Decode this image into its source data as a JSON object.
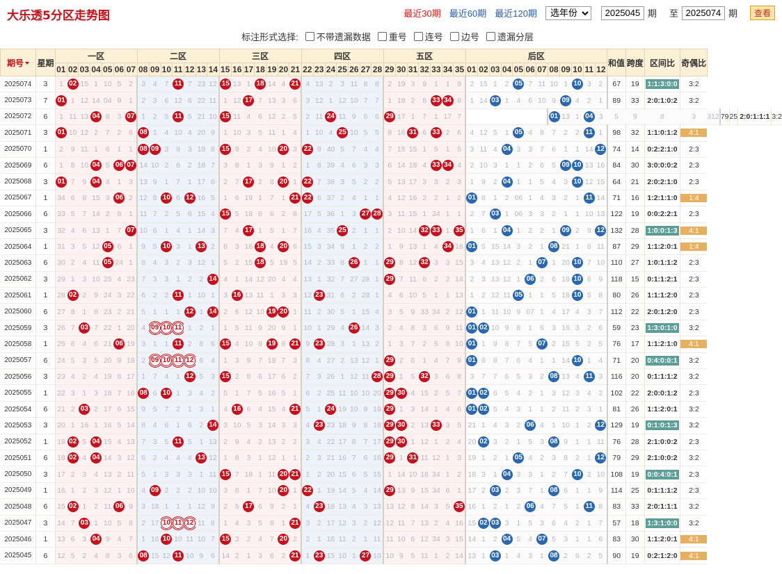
{
  "header": {
    "title": "大乐透5分区走势图",
    "links": [
      "最近30期",
      "最近60期",
      "最近120期"
    ],
    "active_link": 0,
    "year_select": "选年份",
    "period_from": "2025045",
    "period_label": "期",
    "to_label": "至",
    "period_to": "2025074",
    "view_button": "查看"
  },
  "options": {
    "label": "标注形式选择:",
    "items": [
      "不带遗漏数据",
      "重号",
      "连号",
      "边号",
      "遗漏分层"
    ]
  },
  "table": {
    "col_period": "期号",
    "col_week": "星期",
    "zones": [
      "一区",
      "二区",
      "三区",
      "四区",
      "五区",
      "后区"
    ],
    "col_sum": "和值",
    "col_span": "跨度",
    "col_ratio": "区间比",
    "col_oe": "奇偶比",
    "front_numbers": [
      "01",
      "02",
      "03",
      "04",
      "05",
      "06",
      "07",
      "08",
      "09",
      "10",
      "11",
      "12",
      "13",
      "14",
      "15",
      "16",
      "17",
      "18",
      "19",
      "20",
      "21",
      "22",
      "23",
      "24",
      "25",
      "26",
      "27",
      "28",
      "29",
      "30",
      "31",
      "32",
      "33",
      "34",
      "35"
    ],
    "back_numbers": [
      "01",
      "02",
      "03",
      "04",
      "05",
      "06",
      "07",
      "08",
      "09",
      "10",
      "11",
      "12"
    ]
  },
  "rows": [
    {
      "p": "2025074",
      "w": "3",
      "f": "1 02 15 1 10 5 2|3 4 7 11 7 23 12|15 13 1 18 14 4 21|4 13 2 3 11 8 8|2 19 3 9 1 1 9",
      "b": "2 15 1 2 05 7 11 10 1 10 3 2",
      "s": "67",
      "k": "19",
      "ratio": "1:1:3:0:0",
      "oe": "3:2"
    },
    {
      "p": "2025073",
      "w": "7",
      "f": "01 1 12 14 04 9 1|2 3 6 12 6 22 11|1 12 17 7 13 3 6|3 12 1 12 10 7 7|1 18 2 8 33 34 8",
      "b": "1 14 03 1 4 6 10 9 09 4 2 1",
      "s": "89",
      "k": "33",
      "ratio": "2:0:1:0:2",
      "oe": "3:2"
    },
    {
      "p": "2025072",
      "w": "6",
      "f": "1 11 13 04 8 3 07|1 2 5 11 5 21 10|15 11 4 6 12 2 5|2 11 24 11 9 6 6|29 17 1 7 1 17 7|",
      "b": "01 13 1 04 3 5 9 8 3 3 1 2",
      "s": "79",
      "k": "25",
      "ratio": "2:0:1:1:1",
      "oe": "3:2"
    },
    {
      "p": "2025071",
      "w": "3",
      "f": "01 10 12 2 7 2 6|08 1 4 10 4 20 9|1 10 3 5 11 1 4|1 10 4 25 10 5 5|8 16 31 6 33 2 6",
      "b": "4 12 5 1 05 4 8 7 2 2 11 1",
      "s": "98",
      "k": "32",
      "ratio": "1:1:0:1:2",
      "oe": "4:1"
    },
    {
      "p": "2025070",
      "w": "1",
      "f": "2 9 11 1 6 1 1|08 09 3 9 3 19 8|15 9 2 4 10 20 3|22 9 40 5 7 4 4|7 15 15 1 5 1 5",
      "b": "3 11 4 04 3 3 7 6 1 1 14 12",
      "s": "74",
      "k": "14",
      "ratio": "0:2:2:1:0",
      "oe": "2:3"
    },
    {
      "p": "2025069",
      "w": "6",
      "f": "1 8 10 04 5 06 07|14 10 2 8 2 18 7|3 8 1 3 9 1 2|1 8 39 4 6 3 3|6 14 18 4 33 34 4",
      "b": "2 10 3 1 1 2 6 5 09 10 13 16",
      "s": "84",
      "k": "30",
      "ratio": "3:0:0:0:2",
      "oe": "2:3"
    },
    {
      "p": "2025068",
      "w": "3",
      "f": "01 7 9 04 4 1 3|13 9 1 7 1 17 6|2 7 17 2 8 20 1|22 7 38 3 5 2 2|5 13 17 3 3 2 3",
      "b": "1 9 2 04 1 1 5 4 3 10 12 15",
      "s": "64",
      "k": "21",
      "ratio": "2:0:2:1:0",
      "oe": "2:3"
    },
    {
      "p": "2025067",
      "w": "1",
      "f": "34 6 8 15 3 06 2|12 8 10 6 12 16 5|1 6 19 1 7 1 21|22 6 37 2 4 1 1|4 12 16 2 2 1 2",
      "b": "01 8 1 2 06 1 4 3 2 1 11 14",
      "s": "71",
      "k": "16",
      "ratio": "1:2:1:1:0",
      "oe": "1:4"
    },
    {
      "p": "2025066",
      "w": "6",
      "f": "33 5 7 14 2 8 1|11 7 2 5 6 15 4|15 5 18 6 6 2 8|17 5 36 1 3 27 28|3 11 15 1 34 1 1",
      "b": "2 7 03 1 06 3 3 2 1 1 10 13",
      "s": "122",
      "k": "19",
      "ratio": "0:0:2:2:1",
      "oe": "2:3"
    },
    {
      "p": "2025065",
      "w": "3",
      "f": "32 4 6 13 1 7 07|10 6 1 4 1 14 3|7 4 17 1 5 1 7|16 4 35 25 2 1 1|2 10 14 32 33 1 35",
      "b": "1 6 1 04 1 2 2 1 09 2 9 12",
      "s": "132",
      "k": "28",
      "ratio": "1:0:0:1:3",
      "oe": "4:1"
    },
    {
      "p": "2025064",
      "w": "1",
      "f": "31 3 5 12 05 6 1|9 5 10 3 1 13 2|6 3 16 18 4 20 6|15 3 34 9 1 2 2|1 9 13 1 4 34 16",
      "b": "01 5 15 14 3 2 1 08 21 1 8 11",
      "s": "87",
      "k": "29",
      "ratio": "1:1:2:0:1",
      "oe": "1:4"
    },
    {
      "p": "2025063",
      "w": "6",
      "f": "30 2 4 11 05 24 1|8 4 3 2 3 12 1|5 2 15 18 5 19 5|14 2 33 8 26 1 1|29 8 12 32 3 3 15",
      "b": "3 4 13 12 2 1 07 1 20 10 7 10",
      "s": "110",
      "k": "27",
      "ratio": "1:0:1:1:2",
      "oe": "2:3"
    },
    {
      "p": "2025062",
      "w": "3",
      "f": "29 1 3 10 25 4 23|7 3 3 1 2 2 14|4 1 14 12 20 4 4|13 1 32 7 27 28 1|29 7 11 6 2 2 14",
      "b": "2 3 13 12 1 06 2 6 19 10 6 9",
      "s": "118",
      "k": "15",
      "ratio": "0:1:1:2:1",
      "oe": "2:3"
    },
    {
      "p": "2025061",
      "w": "1",
      "f": "28 02 2 9 24 3 22|6 2 2 11 1 10 1|3 16 13 11 1 3 3|12 23 31 6 2 28 1|4 6 10 5 1 1 13",
      "b": "1 2 12 11 05 1 1 5 18 10 5 8",
      "s": "80",
      "k": "26",
      "ratio": "1:1:1:2:0",
      "oe": "2:3"
    },
    {
      "p": "2025060",
      "w": "6",
      "f": "27 8 1 8 23 2 21|5 1 1 1 12 1 14|2 6 12 10 19 20 1|11 2 30 5 1 15 4|3 5 9 33 34 2 12",
      "b": "01 1 11 10 9 07 1 4 17 4 3 7",
      "s": "112",
      "k": "22",
      "ratio": "2:0:1:2:0",
      "oe": "2:3"
    },
    {
      "p": "2025059",
      "w": "3",
      "f": "26 7 03 7 22 1 20|4 09 10 11 1 2 1|1 5 11 9 20 9 1|10 1 29 4 26 14 3|2 4 8 3 6 9 11",
      "b": "01 02 10 9 8 1 6 3 16 3 2 6",
      "s": "59",
      "k": "23",
      "ratio": "1:3:0:1:0",
      "oe": "3:2"
    },
    {
      "p": "2025058",
      "w": "1",
      "f": "25 6 4 6 21 06 19|3 1 1 11 2 8 6|15 4 10 8 19 8 21|9 23 28 3 1 13 2|1 3 7 2 5 8 10",
      "b": "01 1 9 8 7 5 07 2 15 5 2 5",
      "s": "76",
      "k": "17",
      "ratio": "1:1:2:1:0",
      "oe": "4:1"
    },
    {
      "p": "2025057",
      "w": "6",
      "f": "24 5 3 5 20 9 18|2 09 10 11 12 6 4|1 3 9 7 18 7 3|8 4 27 2 13 12 1|29 2 6 1 4 7 9",
      "b": "01 8 8 7 6 4 1 1 14 10 1 4",
      "s": "71",
      "k": "20",
      "ratio": "0:4:0:0:1",
      "oe": "3:2"
    },
    {
      "p": "2025056",
      "w": "3",
      "f": "23 4 2 4 19 8 17|1 7 4 1 12 5 3|15 2 8 6 17 6 2|7 3 26 1 12 11 28|29 1 5 32 3 6 8",
      "b": "3 7 7 6 5 3 2 08 13 4 11 3",
      "s": "116",
      "k": "20",
      "ratio": "0:1:1:1:2",
      "oe": "3:2"
    },
    {
      "p": "2025055",
      "w": "1",
      "f": "22 3 1 3 18 7 16|08 6 10 1 3 4 2|5 1 7 5 16 5 1|6 2 25 11 10 10 20|29 30 4 15 2 5 7",
      "b": "01 02 6 5 4 2 1 3 12 3 4 2",
      "s": "102",
      "k": "22",
      "ratio": "2:0:0:1:2",
      "oe": "2:3"
    },
    {
      "p": "2025054",
      "w": "6",
      "f": "21 2 03 2 17 6 15|9 5 7 2 1 3 1|4 16 6 4 15 4 21|5 1 24 19 10 9 19|29 1 3 14 1 4 6",
      "b": "01 02 5 4 3 1 1 2 11 2 3 1",
      "s": "81",
      "k": "26",
      "ratio": "1:1:2:0:1",
      "oe": "3:2"
    },
    {
      "p": "2025053",
      "w": "3",
      "f": "20 1 16 1 16 5 14|8 4 6 1 6 2 14|3 10 5 3 14 3 3|4 23 23 18 9 8 18|29 30 2 13 33 3 5",
      "b": "21 1 4 3 2 06 4 1 10 1 2 12",
      "s": "129",
      "k": "19",
      "ratio": "0:1:0:1:3",
      "oe": "3:2"
    },
    {
      "p": "2025052",
      "w": "1",
      "f": "19 02 5 04 15 4 13|7 3 5 11 5 1 13|2 9 4 2 13 2 2|3 4 22 17 8 7 17|29 30 1 12 1 2 4",
      "b": "20 02 3 2 1 5 3 08 9 1 1 11",
      "s": "76",
      "k": "28",
      "ratio": "2:1:0:0:2",
      "oe": "2:3"
    },
    {
      "p": "2025051",
      "w": "6",
      "f": "18 02 4 04 14 3 12|6 2 4 4 4 13 12|1 8 3 1 12 1 1|2 3 21 16 7 6 16|29 1 31 11 12 1 3",
      "b": "19 1 2 1 05 4 2 3 8 2 1 12",
      "s": "79",
      "k": "29",
      "ratio": "2:1:0:0:2",
      "oe": "3:2"
    },
    {
      "p": "2025050",
      "w": "3",
      "f": "17 2 3 4 13 2 11|5 1 3 3 3 1 11|15 7 18 1 11 20 21|1 2 20 15 6 5 15|1 14 10 16 34 1 2",
      "b": "18 3 1 04 3 3 1 2 7 10 2 10",
      "s": "108",
      "k": "19",
      "ratio": "0:0:4:0:1",
      "oe": "2:3"
    },
    {
      "p": "2025049",
      "w": "1",
      "f": "16 1 2 3 12 1 10|4 09 2 2 2 10 10|3 6 1 7 10 20 1|22 1 19 14 5 4 14|29 13 9 15 34 6 1",
      "b": "17 2 03 2 3 7 1 08 6 1 1 9",
      "s": "114",
      "k": "25",
      "ratio": "0:1:1:1:2",
      "oe": "2:3"
    },
    {
      "p": "2025048",
      "w": "6",
      "f": "15 02 1 2 11 06 9|3 18 1 1 1 12 9|2 5 17 6 9 2 1|4 23 18 13 4 3 13|13 12 8 14 3 5 35",
      "b": "16 1 2 1 2 06 4 7 5 1 11 8",
      "s": "83",
      "k": "33",
      "ratio": "2:0:1:1:1",
      "oe": "3:2"
    },
    {
      "p": "2025047",
      "w": "3",
      "f": "14 7 03 1 10 5 8|2 17 10 11 12 11 8|1 4 3 5 8 1 21|3 2 17 12 3 2 12|12 11 7 13 2 4 16",
      "b": "15 02 03 3 1 5 3 6 4 2 1 7",
      "s": "57",
      "k": "18",
      "ratio": "1:3:1:0:0",
      "oe": "3:2"
    },
    {
      "p": "2025046",
      "w": "1",
      "f": "13 6 3 04 9 4 7|1 16 10 10 11 10 7|15 3 2 4 7 20 2|2 1 16 11 2 1 11|11 10 6 12 34 3 15",
      "b": "14 1 2 04 5 4 07 5 3 1 1 6",
      "s": "83",
      "k": "30",
      "ratio": "1:1:2:0:1",
      "oe": "4:1"
    },
    {
      "p": "2025045",
      "w": "6",
      "f": "12 5 2 4 8 3 6|08 15 12 11 10 9 6|14 2 1 3 6 2 21|1 23 15 10 1 27 10|10 9 5 11 1 2 14",
      "b": "13 1 03 1 4 3 1 08 2 6 2 5",
      "s": "90",
      "k": "19",
      "ratio": "0:2:1:2:0",
      "oe": "4:1"
    }
  ],
  "repeat_numbers": {
    "2025061": [],
    "2025059": [
      "09",
      "10",
      "11"
    ],
    "2025057": [
      "09",
      "10",
      "11",
      "12"
    ],
    "2025047": [
      "10",
      "11",
      "12"
    ]
  },
  "highlight": {
    "ratio_rows": [
      "2025074",
      "2025065",
      "2025059",
      "2025057",
      "2025053",
      "2025050",
      "2025047"
    ],
    "oe_rows": [
      "2025071",
      "2025067",
      "2025065",
      "2025064",
      "2025058",
      "2025046",
      "2025045"
    ]
  },
  "colors": {
    "red": "#c4111d",
    "blue": "#2a67ad",
    "ratio_bg": "#5c9d98",
    "oe_bg": "#e6b060",
    "title": "#c4121b"
  }
}
